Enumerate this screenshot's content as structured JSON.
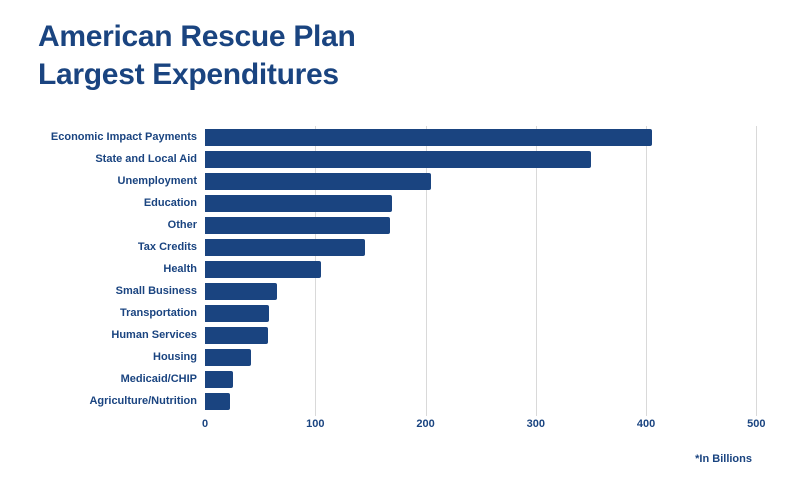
{
  "title": {
    "line1": "American Rescue Plan",
    "line2": "Largest Expenditures"
  },
  "footnote": "*In Billions",
  "colors": {
    "bar": "#1a4480",
    "text": "#1a4480",
    "grid": "#d9d9d9",
    "background": "#ffffff"
  },
  "chart_data": {
    "type": "bar",
    "orientation": "horizontal",
    "title": "American Rescue Plan Largest Expenditures",
    "xlabel": "",
    "ylabel": "",
    "units_note": "*In Billions",
    "categories": [
      "Economic Impact Payments",
      "State and Local Aid",
      "Unemployment",
      "Education",
      "Other",
      "Tax Credits",
      "Health",
      "Small Business",
      "Transportation",
      "Human Services",
      "Housing",
      "Medicaid/CHIP",
      "Agriculture/Nutrition"
    ],
    "values": [
      405,
      350,
      205,
      170,
      168,
      145,
      105,
      65,
      58,
      57,
      42,
      25,
      23
    ],
    "xlim": [
      0,
      500
    ],
    "xticks": [
      0,
      100,
      200,
      300,
      400,
      500
    ],
    "grid": "vertical-only",
    "legend": "none"
  }
}
